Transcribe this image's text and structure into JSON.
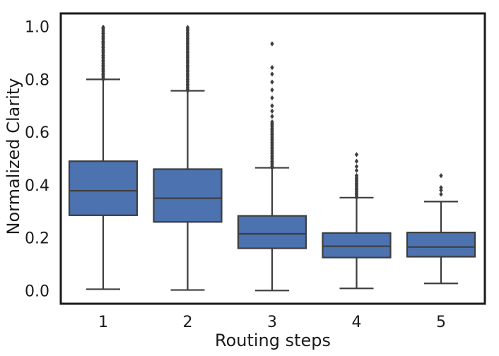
{
  "chart_data": {
    "type": "box",
    "title": "",
    "xlabel": "Routing steps",
    "ylabel": "Normalized Clarity",
    "categories": [
      "1",
      "2",
      "3",
      "4",
      "5"
    ],
    "ylim": [
      -0.05,
      1.05
    ],
    "yticks": [
      0.0,
      0.2,
      0.4,
      0.6,
      0.8,
      1.0
    ],
    "ytick_labels": [
      "0.0",
      "0.2",
      "0.4",
      "0.6",
      "0.8",
      "1.0"
    ],
    "grid": false,
    "box_color": "#4c72b0",
    "line_color": "#3d3d3d",
    "boxes": [
      {
        "category": "1",
        "whisker_low": 0.005,
        "q1": 0.285,
        "median": 0.378,
        "q3": 0.49,
        "whisker_high": 0.8,
        "outliers_dense_range": [
          0.8,
          1.0
        ],
        "outliers": []
      },
      {
        "category": "2",
        "whisker_low": 0.002,
        "q1": 0.26,
        "median": 0.35,
        "q3": 0.46,
        "whisker_high": 0.757,
        "outliers_dense_range": [
          0.757,
          1.0
        ],
        "outliers": []
      },
      {
        "category": "3",
        "whisker_low": 0.0,
        "q1": 0.16,
        "median": 0.215,
        "q3": 0.283,
        "whisker_high": 0.465,
        "outliers_dense_range": [
          0.465,
          0.64
        ],
        "outliers": [
          0.66,
          0.68,
          0.7,
          0.73,
          0.76,
          0.79,
          0.82,
          0.845,
          0.935
        ]
      },
      {
        "category": "4",
        "whisker_low": 0.008,
        "q1": 0.125,
        "median": 0.168,
        "q3": 0.218,
        "whisker_high": 0.352,
        "outliers_dense_range": [
          0.352,
          0.44
        ],
        "outliers": [
          0.455,
          0.47,
          0.49,
          0.515
        ]
      },
      {
        "category": "5",
        "whisker_low": 0.027,
        "q1": 0.128,
        "median": 0.165,
        "q3": 0.22,
        "whisker_high": 0.337,
        "outliers_dense_range": [],
        "outliers": [
          0.365,
          0.38,
          0.39,
          0.435
        ]
      }
    ]
  }
}
